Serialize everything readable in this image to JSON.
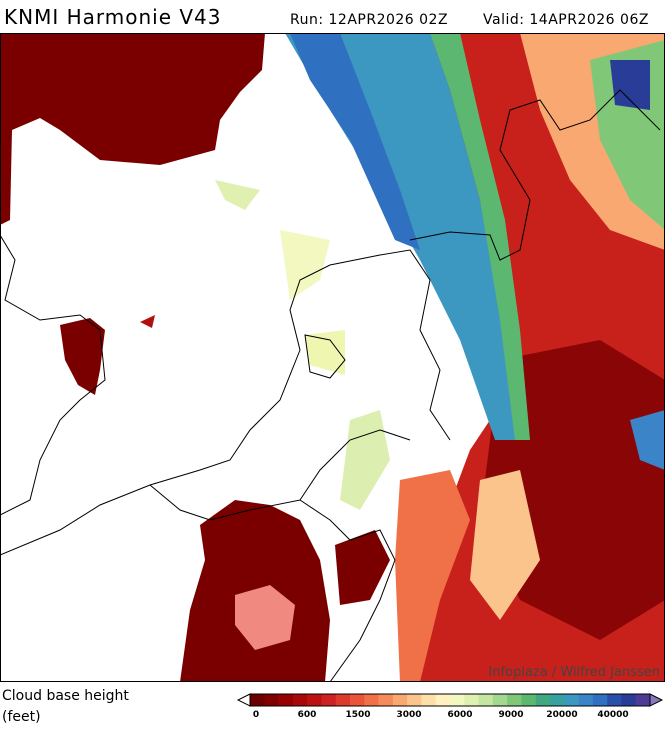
{
  "header": {
    "title": "KNMI Harmonie V43",
    "run": "Run: 12APR2026 02Z",
    "valid": "Valid: 14APR2026 06Z"
  },
  "credit": "Infoplaza / Wilfred Janssen",
  "legend": {
    "title": "Cloud base height",
    "unit": "(feet)",
    "labels": [
      "0",
      "600",
      "1500",
      "3000",
      "6000",
      "9000",
      "20000",
      "40000"
    ],
    "colors": [
      "#6b0000",
      "#800000",
      "#960000",
      "#a80808",
      "#bd1010",
      "#cc2222",
      "#dc3b2c",
      "#e8553a",
      "#f07048",
      "#f48c5a",
      "#f8a870",
      "#fbc48c",
      "#fde0a8",
      "#fff2c0",
      "#f2f8c0",
      "#dff0b0",
      "#c4e6a0",
      "#a4d890",
      "#80c878",
      "#5cb870",
      "#40a880",
      "#38a0a0",
      "#3c98c0",
      "#3c84c8",
      "#3070c0",
      "#2850a8",
      "#283c98",
      "#4c3c98"
    ]
  }
}
